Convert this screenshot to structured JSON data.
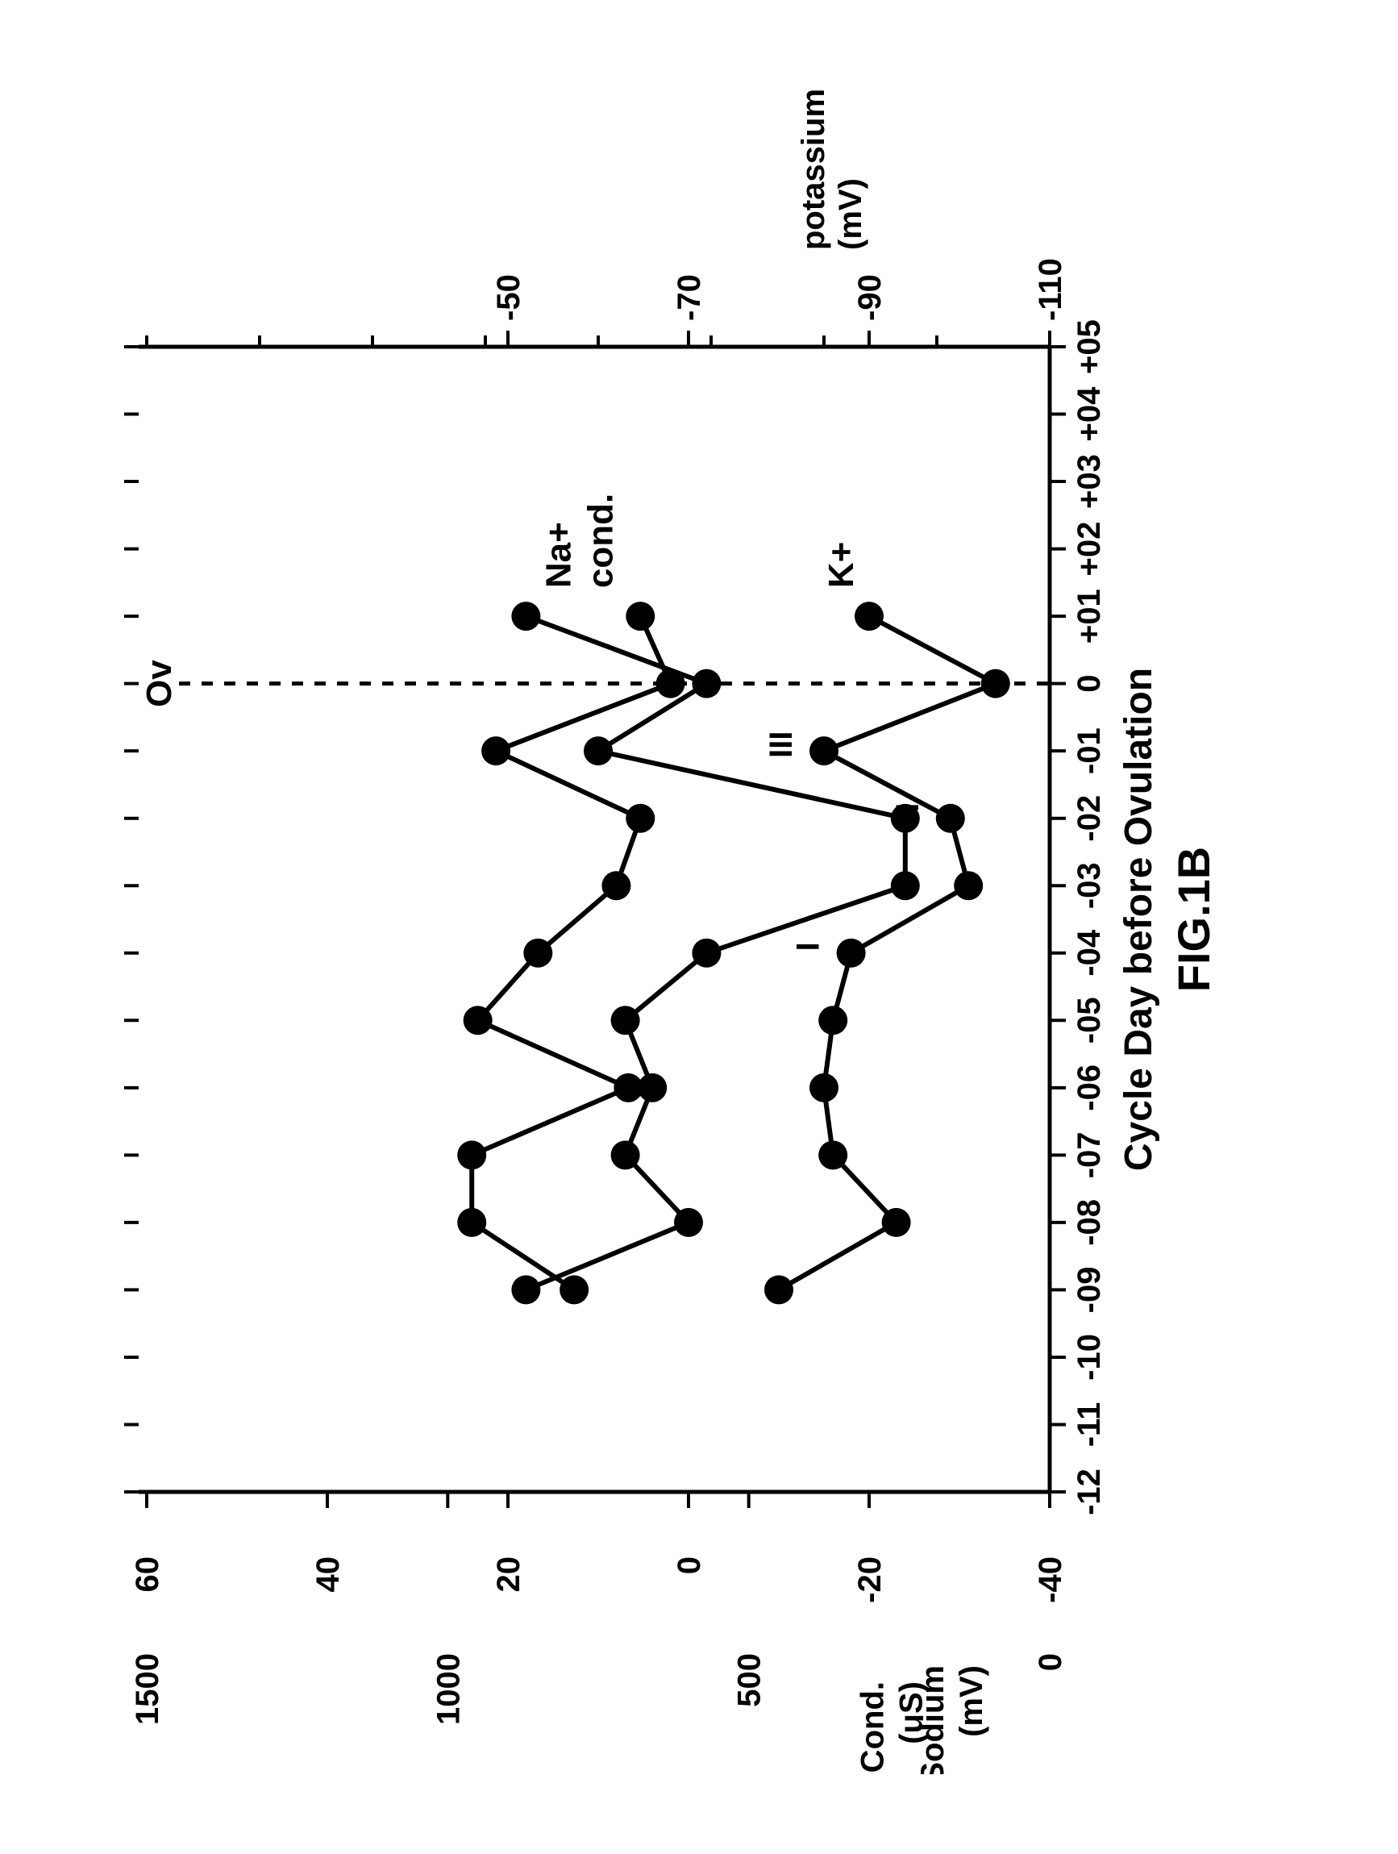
{
  "figure": {
    "caption": "FIG.1B",
    "caption_fontsize": 56,
    "xlabel": "Cycle Day before Ovulation",
    "xlabel_fontsize": 48,
    "background_color": "#ffffff",
    "stroke_color": "#000000",
    "axis_stroke_width": 5,
    "tick_length": 20,
    "tick_width": 4,
    "tick_font_size": 40,
    "label_font_size": 40,
    "x_categories": [
      "-12",
      "-11",
      "-10",
      "-09",
      "-08",
      "-07",
      "-06",
      "-05",
      "-04",
      "-03",
      "-02",
      "-01",
      "0",
      "+01",
      "+02",
      "+03",
      "+04",
      "+05"
    ],
    "x_data_indices": [
      3,
      4,
      5,
      6,
      7,
      8,
      9,
      10,
      11,
      12,
      13
    ],
    "ov_marker": {
      "x_index": 12,
      "label": "Ov",
      "dash": "14,14"
    },
    "roman": [
      {
        "x_index": 8,
        "text": "I"
      },
      {
        "x_index": 10,
        "text": "II"
      },
      {
        "x_index": 11,
        "text": "III"
      }
    ],
    "left_axes": [
      {
        "id": "cond_uS",
        "label": "Cond.",
        "unit": "(uS)",
        "min": 0,
        "max": 1500,
        "ticks": [
          0,
          500,
          1000,
          1500
        ]
      },
      {
        "id": "sodium_mV",
        "label": "Sodium",
        "unit": "(mV)",
        "min": -40,
        "max": 60,
        "ticks": [
          -40,
          -20,
          0,
          20,
          40,
          60
        ]
      }
    ],
    "right_axis": {
      "id": "potassium_mV",
      "label": "potassium",
      "unit": "(mV)",
      "min": -110,
      "max": -50,
      "ticks": [
        -110,
        -90,
        -70,
        -50
      ]
    },
    "series": {
      "cond": {
        "label": "cond.",
        "axis": "cond_uS",
        "color": "#000000",
        "line_width": 6,
        "marker": "circle",
        "marker_radius": 18,
        "y_values": [
          790,
          960,
          960,
          700,
          950,
          850,
          720,
          680,
          920,
          630,
          680
        ]
      },
      "na": {
        "label": "Na+",
        "axis": "sodium_mV",
        "color": "#000000",
        "line_width": 6,
        "marker": "circle",
        "marker_radius": 18,
        "y_values": [
          18,
          0,
          7,
          4,
          7,
          -2,
          -24,
          -24,
          10,
          -2,
          18
        ]
      },
      "k": {
        "label": "K+",
        "axis": "potassium_mV",
        "color": "#000000",
        "line_width": 6,
        "marker": "circle",
        "marker_radius": 18,
        "y_values": [
          -80,
          -93,
          -86,
          -85,
          -86,
          -88,
          -101,
          -99,
          -85,
          -104,
          -90
        ]
      }
    },
    "series_label_fontsize": 44
  }
}
